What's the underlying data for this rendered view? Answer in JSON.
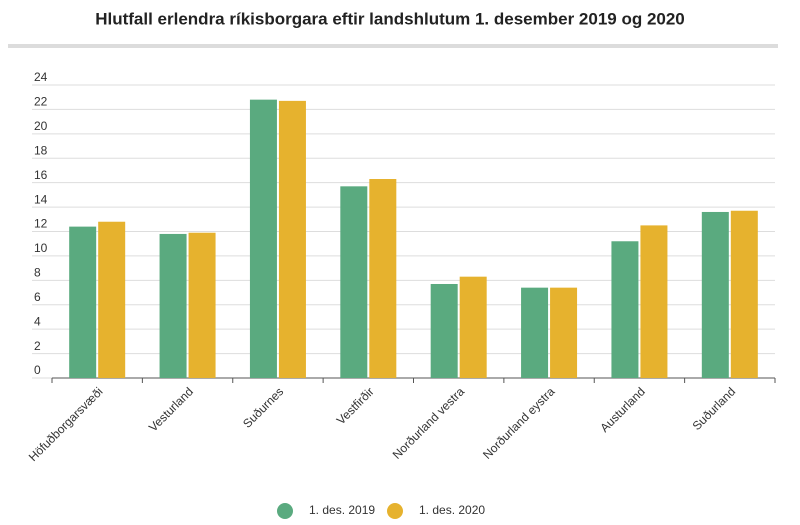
{
  "chart_data": {
    "type": "bar",
    "title": "Hlutfall erlendra ríkisborgara eftir landshlutum 1. desember 2019 og 2020",
    "categories": [
      "Höfuðborgarsvæði",
      "Vesturland",
      "Suðurnes",
      "Vestfirðir",
      "Norðurland vestra",
      "Norðurland eystra",
      "Austurland",
      "Suðurland"
    ],
    "series": [
      {
        "name": "1. des. 2019",
        "color": "#5aaa7f",
        "values": [
          12.4,
          11.8,
          22.8,
          15.7,
          7.7,
          7.4,
          11.2,
          13.6
        ]
      },
      {
        "name": "1. des. 2020",
        "color": "#e6b22e",
        "values": [
          12.8,
          11.9,
          22.7,
          16.3,
          8.3,
          7.4,
          12.5,
          13.7
        ]
      }
    ],
    "ylim": [
      0,
      24
    ],
    "yticks": [
      0,
      2,
      4,
      6,
      8,
      10,
      12,
      14,
      16,
      18,
      20,
      22,
      24
    ],
    "grid": true,
    "legend": "bottom"
  }
}
